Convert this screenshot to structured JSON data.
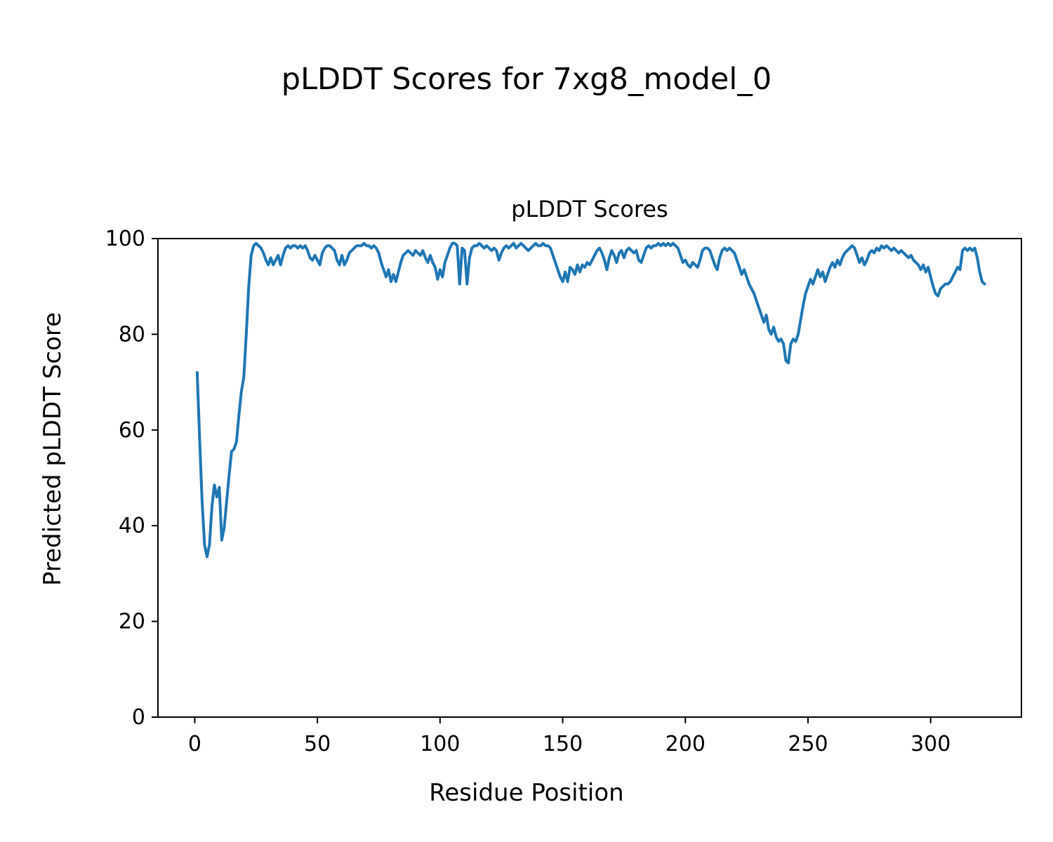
{
  "figure": {
    "suptitle": "pLDDT Scores for 7xg8_model_0"
  },
  "chart_data": {
    "type": "line",
    "title": "pLDDT Scores",
    "xlabel": "Residue Position",
    "ylabel": "Predicted pLDDT Score",
    "x_ticks": [
      0,
      50,
      100,
      150,
      200,
      250,
      300
    ],
    "y_ticks": [
      0,
      20,
      40,
      60,
      80,
      100
    ],
    "xlim": [
      -15,
      337
    ],
    "ylim": [
      0,
      100
    ],
    "grid": false,
    "legend": "none",
    "line_color": "#1f77b4",
    "line_width": 4,
    "x_start": 1,
    "x_step": 1,
    "values": [
      72,
      58,
      45,
      36,
      33.5,
      36,
      44,
      48.5,
      46,
      48,
      37,
      39.5,
      45,
      50.5,
      55.5,
      56,
      57.5,
      63,
      68,
      71,
      80,
      90,
      96.5,
      98.5,
      99,
      98.5,
      98,
      97,
      95.5,
      94.5,
      96,
      94.5,
      95.5,
      96.5,
      94.5,
      96.5,
      98,
      98.5,
      98,
      98.5,
      98.5,
      98,
      98.5,
      98,
      98.5,
      97.5,
      96,
      95.5,
      96.5,
      95.5,
      94.5,
      97,
      98,
      98.5,
      98.5,
      98,
      97.5,
      95.5,
      94.5,
      96.5,
      94.5,
      95.5,
      97,
      97.5,
      98,
      98.5,
      98.5,
      98.5,
      99,
      98.5,
      98.5,
      98,
      98.5,
      98,
      97,
      95,
      93.5,
      92,
      93.5,
      91,
      92.5,
      91,
      93,
      95,
      96.5,
      97,
      97.5,
      97,
      96.5,
      97.5,
      97,
      96.5,
      97.5,
      96,
      95,
      96.5,
      95,
      94,
      91.5,
      93.5,
      92,
      95,
      96.5,
      98,
      99,
      99,
      98.5,
      90.5,
      98,
      97.5,
      90.5,
      96,
      98,
      98.5,
      98.5,
      99,
      98.5,
      98,
      98.5,
      98,
      97.5,
      98,
      97.5,
      95.5,
      97,
      98,
      98.5,
      98,
      98.5,
      99,
      98,
      98.5,
      99,
      98.5,
      98,
      97.5,
      98,
      98.5,
      99,
      98.5,
      98.5,
      99,
      98.5,
      98.5,
      98,
      96.5,
      95,
      93.5,
      92,
      91,
      93,
      91,
      94,
      93.5,
      92.5,
      94.5,
      93,
      94.5,
      94,
      95,
      94.5,
      95.5,
      96.5,
      97.5,
      98,
      97,
      95.5,
      93.5,
      96,
      97.5,
      96.5,
      95,
      97,
      97.5,
      96,
      97.5,
      98,
      97.5,
      97,
      97.5,
      95.5,
      95,
      96.5,
      98,
      98.5,
      98,
      98.5,
      98.5,
      99,
      98.5,
      99,
      98.5,
      99,
      98.5,
      99,
      98.5,
      98,
      96.5,
      95,
      95.5,
      94.5,
      94,
      95,
      94.5,
      94,
      95.5,
      97.5,
      98,
      98,
      97.5,
      96,
      94.5,
      93.5,
      96,
      97.5,
      98,
      97.5,
      98,
      97.5,
      97,
      95.5,
      94,
      92.5,
      93.5,
      92,
      90.5,
      89.5,
      88.5,
      87,
      85.5,
      84,
      82.5,
      84,
      81,
      80,
      81.5,
      79.5,
      78.5,
      79,
      78,
      74.5,
      74,
      78,
      79,
      78.5,
      80,
      83,
      86,
      88.5,
      90,
      91.5,
      90.5,
      92,
      93.5,
      92,
      93,
      91,
      92.5,
      94,
      95,
      94,
      95.5,
      94.5,
      96,
      97,
      97.5,
      98,
      98.5,
      98,
      96.5,
      95,
      96,
      94.5,
      95.5,
      97,
      97.5,
      97,
      98,
      97.5,
      98.5,
      98,
      98.5,
      98,
      97.5,
      98,
      97.5,
      97,
      97.5,
      97,
      96.5,
      96,
      96.5,
      95.5,
      95,
      94.5,
      93.5,
      94.5,
      93,
      94,
      92,
      90,
      88.5,
      88,
      89.5,
      90,
      90.5,
      90.5,
      91,
      92,
      93,
      94,
      93.5,
      97.5,
      98,
      97.5,
      98,
      97.5,
      98,
      96,
      93,
      91,
      90.5
    ]
  }
}
